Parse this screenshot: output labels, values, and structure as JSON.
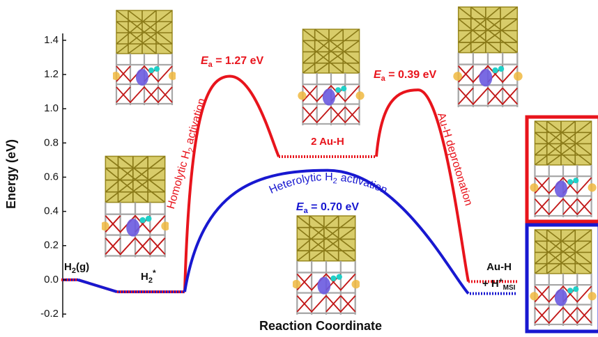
{
  "chart_data": {
    "type": "energy-profile",
    "ylabel": "Energy (eV)",
    "xlabel": "Reaction Coordinate",
    "ylim": [
      -0.22,
      1.44
    ],
    "yticks": [
      -0.2,
      {
        "value": 0,
        "label": "0.0"
      },
      0.2,
      0.4,
      0.6,
      0.8,
      {
        "value": 1,
        "label": "1.0"
      },
      1.2,
      1.4
    ],
    "series": [
      {
        "color": "#e8141c",
        "values": [
          0.0,
          -0.07,
          1.19,
          0.72,
          1.11,
          -0.01
        ]
      },
      {
        "color": "#1818d0",
        "values": [
          0.0,
          -0.07,
          0.64,
          -0.08
        ]
      }
    ],
    "labels": {
      "h2_gas": {
        "main": "H",
        "sub": "2",
        "rest": "(g)"
      },
      "h2_ads": {
        "main": "H",
        "sub": "2",
        "sup": "*"
      },
      "au_h_2": "2 Au-H",
      "final_1": "Au-H",
      "final_2": {
        "main": "+ H",
        "sup": "+",
        "sub": "MSI"
      },
      "homolytic": {
        "main": "Homolytic H",
        "sub": "2",
        "rest": " activation"
      },
      "heterolytic": {
        "main": "Heterolytic H",
        "sub": "2",
        "rest": " activation"
      },
      "deprotonation": "Au-H deprotonation",
      "ea": [
        {
          "symbol": "E",
          "sub": "a",
          "rest": " = 1.27 eV"
        },
        {
          "symbol": "E",
          "sub": "a",
          "rest": " = 0.39 eV"
        },
        {
          "symbol": "E",
          "sub": "a",
          "rest": " = 0.70 eV"
        }
      ]
    }
  }
}
